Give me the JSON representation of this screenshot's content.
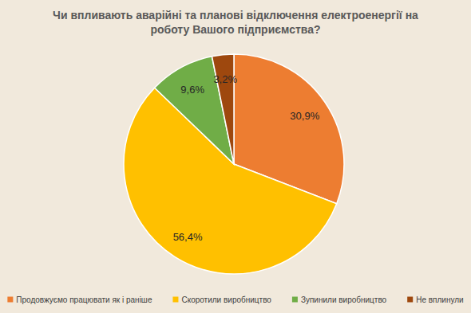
{
  "chart_data": {
    "type": "pie",
    "title": "Чи впливають аварійні та планові відключення електроенергії на роботу Вашого підприємства?",
    "categories": [
      "Продовжуємо працювати як і раніше",
      "Скоротили виробництво",
      "Зупинили виробництво",
      "Не вплинули"
    ],
    "values": [
      30.9,
      56.4,
      9.6,
      3.2
    ],
    "value_labels": [
      "30,9%",
      "56,4%",
      "9,6%",
      "3,2%"
    ],
    "colors": [
      "#ed7d31",
      "#ffc000",
      "#70ad47",
      "#9e480e"
    ],
    "data_labels": true,
    "legend": "bottom"
  }
}
